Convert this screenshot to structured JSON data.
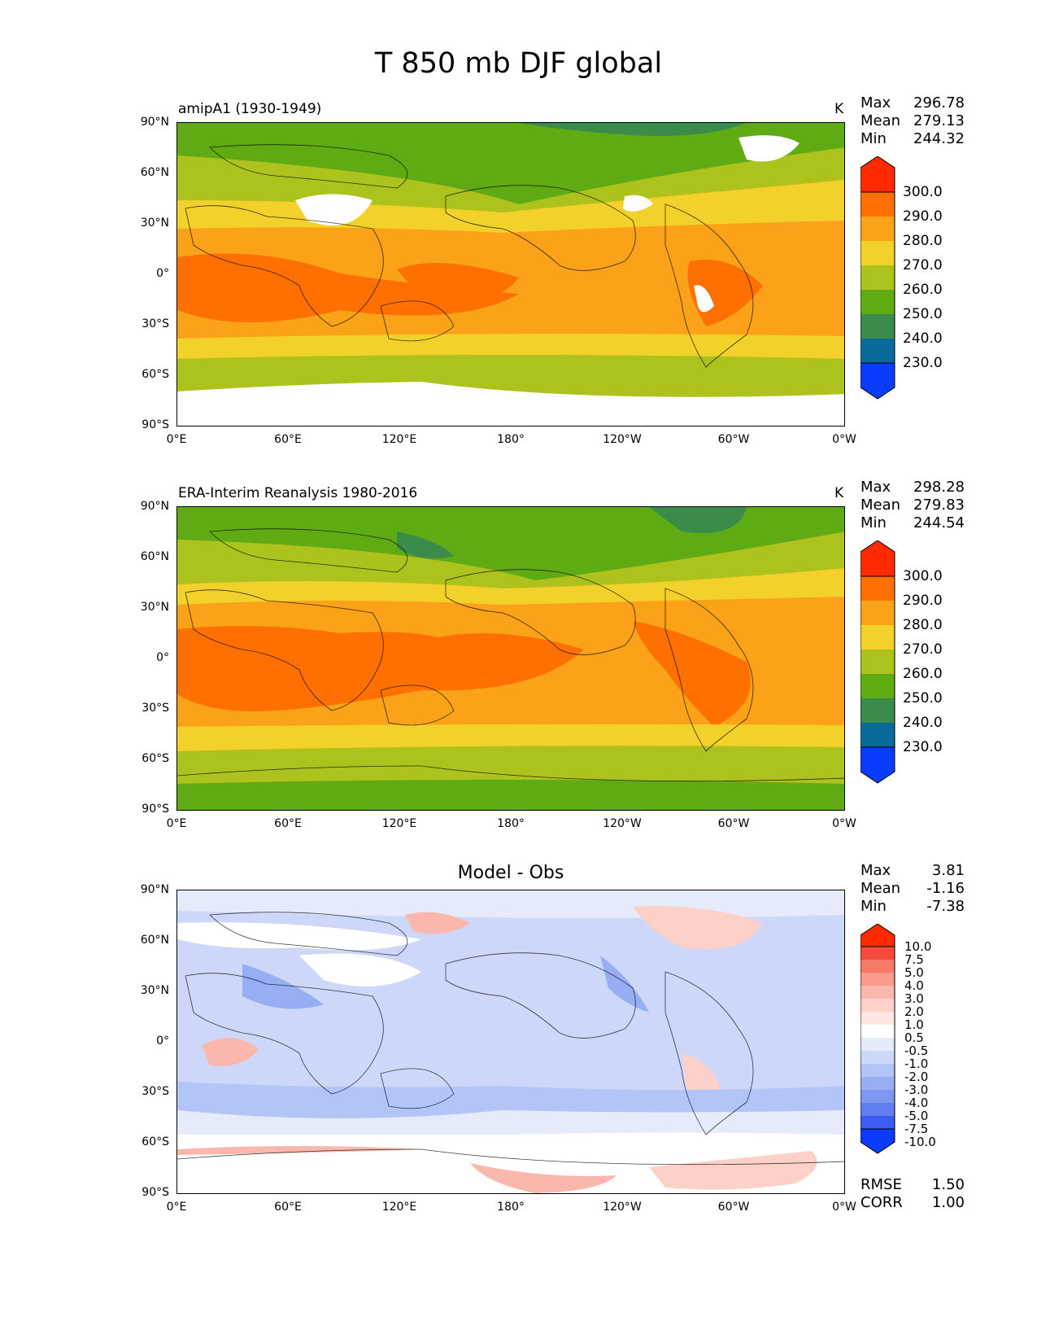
{
  "title": "T 850 mb DJF global",
  "axes": {
    "y_ticks": [
      "90°N",
      "60°N",
      "30°N",
      "0°",
      "30°S",
      "60°S",
      "90°S"
    ],
    "x_ticks": [
      "0°E",
      "60°E",
      "120°E",
      "180°",
      "120°W",
      "60°W",
      "0°W"
    ]
  },
  "panels": [
    {
      "subtitle": "amipA1 (1930-1949)",
      "units": "K",
      "stats": {
        "max_label": "Max",
        "max": "296.78",
        "mean_label": "Mean",
        "mean": "279.13",
        "min_label": "Min",
        "min": "244.32"
      },
      "colorbar_labels": [
        "300.0",
        "290.0",
        "280.0",
        "270.0",
        "260.0",
        "250.0",
        "240.0",
        "230.0"
      ]
    },
    {
      "subtitle": "ERA-Interim Reanalysis 1980-2016",
      "units": "K",
      "stats": {
        "max_label": "Max",
        "max": "298.28",
        "mean_label": "Mean",
        "mean": "279.83",
        "min_label": "Min",
        "min": "244.54"
      },
      "colorbar_labels": [
        "300.0",
        "290.0",
        "280.0",
        "270.0",
        "260.0",
        "250.0",
        "240.0",
        "230.0"
      ]
    },
    {
      "subtitle": "Model - Obs",
      "stats": {
        "max_label": "Max",
        "max": "3.81",
        "mean_label": "Mean",
        "mean": "-1.16",
        "min_label": "Min",
        "min": "-7.38"
      },
      "colorbar_labels": [
        "10.0",
        "7.5",
        "5.0",
        "4.0",
        "3.0",
        "2.0",
        "1.0",
        "0.5",
        "-0.5",
        "-1.0",
        "-2.0",
        "-3.0",
        "-4.0",
        "-5.0",
        "-7.5",
        "-10.0"
      ],
      "metrics": {
        "rmse_label": "RMSE",
        "rmse": "1.50",
        "corr_label": "CORR",
        "corr": "1.00"
      }
    }
  ],
  "colors": {
    "abs_scale": [
      "#ff2a00",
      "#ff7000",
      "#fca218",
      "#f2d12a",
      "#adc21c",
      "#5fab14",
      "#3b8c4a",
      "#0a6b9a",
      "#0a3cff"
    ],
    "diff_scale": [
      "#ff2a00",
      "#f44b3a",
      "#f77a68",
      "#fa9a8c",
      "#fcb7ad",
      "#fdd1ca",
      "#fee6e2",
      "#ffffff",
      "#e6ebfb",
      "#ccd7fa",
      "#b3c4f7",
      "#98aef4",
      "#7e97f0",
      "#5f7ef0",
      "#3c5cf2",
      "#0a3cff"
    ]
  }
}
